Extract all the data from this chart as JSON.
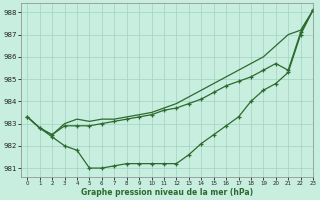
{
  "xlabel": "Graphe pression niveau de la mer (hPa)",
  "bg_color": "#c8eee0",
  "grid_color": "#a0d4c0",
  "line_color": "#2d6a2d",
  "xlim": [
    -0.5,
    23
  ],
  "ylim": [
    980.6,
    988.4
  ],
  "yticks": [
    981,
    982,
    983,
    984,
    985,
    986,
    987,
    988
  ],
  "xticks": [
    0,
    1,
    2,
    3,
    4,
    5,
    6,
    7,
    8,
    9,
    10,
    11,
    12,
    13,
    14,
    15,
    16,
    17,
    18,
    19,
    20,
    21,
    22,
    23
  ],
  "line_upper": [
    983.3,
    982.8,
    982.5,
    983.0,
    983.2,
    983.1,
    983.2,
    983.2,
    983.3,
    983.4,
    983.5,
    983.7,
    983.9,
    984.2,
    984.5,
    984.8,
    985.1,
    985.4,
    985.7,
    986.0,
    986.5,
    987.0,
    987.2,
    988.1
  ],
  "line_mid": [
    983.3,
    982.8,
    982.5,
    982.9,
    982.9,
    982.9,
    983.0,
    983.1,
    983.2,
    983.3,
    983.4,
    983.6,
    983.7,
    983.9,
    984.1,
    984.4,
    984.7,
    984.9,
    985.1,
    985.4,
    985.7,
    985.4,
    987.1,
    988.1
  ],
  "line_low": [
    983.3,
    982.8,
    982.4,
    982.0,
    981.8,
    981.0,
    981.0,
    981.1,
    981.2,
    981.2,
    981.2,
    981.2,
    981.2,
    981.6,
    982.1,
    982.5,
    982.9,
    983.3,
    984.0,
    984.5,
    984.8,
    985.3,
    987.0,
    988.1
  ],
  "marker": "+",
  "markersize": 3.5,
  "linewidth": 0.9
}
